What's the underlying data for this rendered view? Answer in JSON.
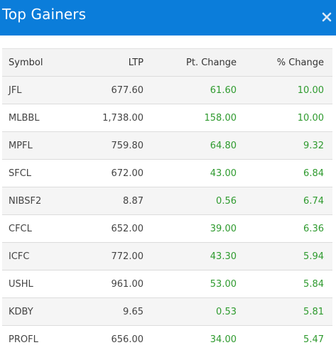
{
  "header": {
    "title": "Top Gainers"
  },
  "table": {
    "columns": {
      "symbol": "Symbol",
      "ltp": "LTP",
      "pt_change": "Pt. Change",
      "pct_change": "% Change"
    },
    "rows": [
      {
        "symbol": "JFL",
        "ltp": "677.60",
        "pt_change": "61.60",
        "pct_change": "10.00"
      },
      {
        "symbol": "MLBBL",
        "ltp": "1,738.00",
        "pt_change": "158.00",
        "pct_change": "10.00"
      },
      {
        "symbol": "MPFL",
        "ltp": "759.80",
        "pt_change": "64.80",
        "pct_change": "9.32"
      },
      {
        "symbol": "SFCL",
        "ltp": "672.00",
        "pt_change": "43.00",
        "pct_change": "6.84"
      },
      {
        "symbol": "NIBSF2",
        "ltp": "8.87",
        "pt_change": "0.56",
        "pct_change": "6.74"
      },
      {
        "symbol": "CFCL",
        "ltp": "652.00",
        "pt_change": "39.00",
        "pct_change": "6.36"
      },
      {
        "symbol": "ICFC",
        "ltp": "772.00",
        "pt_change": "43.30",
        "pct_change": "5.94"
      },
      {
        "symbol": "USHL",
        "ltp": "961.00",
        "pt_change": "53.00",
        "pct_change": "5.84"
      },
      {
        "symbol": "KDBY",
        "ltp": "9.65",
        "pt_change": "0.53",
        "pct_change": "5.81"
      },
      {
        "symbol": "PROFL",
        "ltp": "656.00",
        "pt_change": "34.00",
        "pct_change": "5.47"
      }
    ]
  },
  "colors": {
    "header_bg": "#0b7dda",
    "gain_text": "#2e9a2e",
    "row_alt_bg": "#f5f5f5"
  },
  "icons": {
    "close": "close-icon"
  }
}
